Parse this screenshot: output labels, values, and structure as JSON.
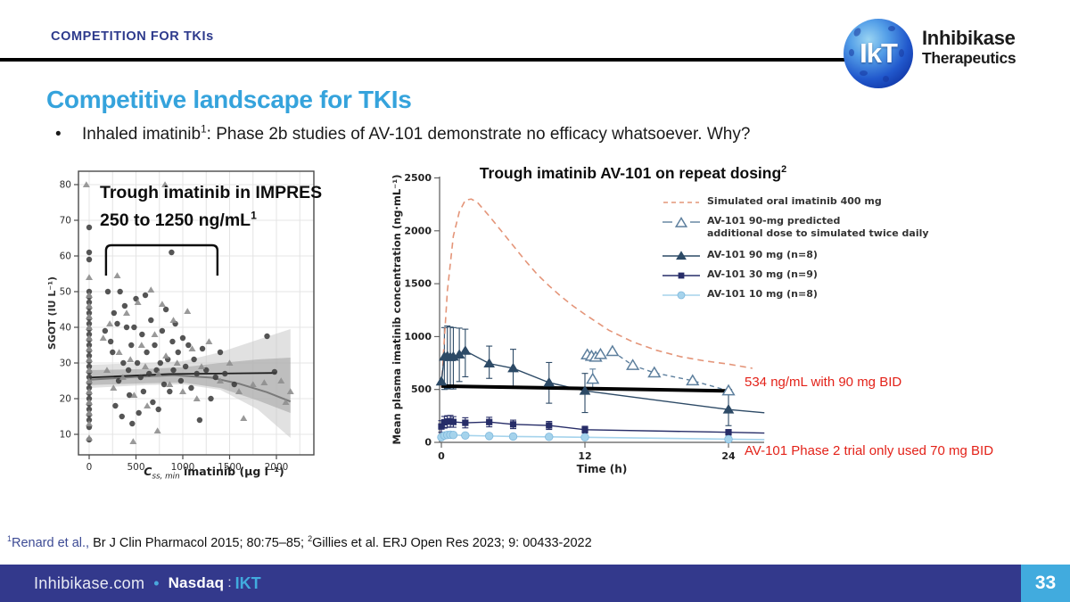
{
  "slide": {
    "kicker": "COMPETITION FOR TKIs",
    "title": "Competitive landscape for TKIs",
    "bullet": {
      "dot": "•",
      "text_before_sup": "Inhaled imatinib",
      "sup": "1",
      "text_after_sup": ":  Phase 2b studies of AV-101 demonstrate no efficacy whatsoever.  Why?"
    },
    "page_number": "33"
  },
  "logo": {
    "monogram": "IkT",
    "name_line1": "Inhibikase",
    "name_line2": "Therapeutics"
  },
  "footnote": {
    "sup1": "1",
    "part1": "Renard et al.,",
    "part2": " Br J Clin Pharmacol  2015; 80:75–85; ",
    "sup2": "2",
    "part3": "Gillies et al. ERJ Open Res 2023; 9: 00433-2022"
  },
  "footer": {
    "website": "Inhibikase.com",
    "dot": "•",
    "exchange": "Nasdaq",
    "colon": ":",
    "ticker": "IKT"
  },
  "colors": {
    "accent_blue": "#35a3dc",
    "kicker_navy": "#2d3a8c",
    "footer_bg": "#33398c",
    "page_badge_blue": "#41abde",
    "annotation_red": "#e32219",
    "footnote_navy": "#3c4a94"
  },
  "chart_data": [
    {
      "type": "scatter",
      "title_line1": "Trough imatinib in IMPRES",
      "title_line2": "250 to 1250 ng/mL",
      "title_sup": "1",
      "xlabel_c": "C",
      "xlabel_sub": "ss, min",
      "xlabel_rest": " imatinib (µg l⁻¹)",
      "ylabel": "SGOT (IU L⁻¹)",
      "xticks": [
        0,
        500,
        1000,
        1500,
        2000
      ],
      "yticks": [
        10,
        20,
        30,
        40,
        50,
        60,
        70,
        80
      ],
      "xlim": [
        -120,
        2400
      ],
      "ylim": [
        4,
        84
      ],
      "grid": true,
      "bracket": {
        "x1": 180,
        "x2": 1370,
        "top": 63,
        "bottom": 54.5
      },
      "fit_flat": [
        [
          0,
          25.9
        ],
        [
          850,
          26.9
        ],
        [
          2000,
          27.2
        ]
      ],
      "fit_curve": [
        [
          0,
          25.3
        ],
        [
          500,
          26.1
        ],
        [
          900,
          26.6
        ],
        [
          1300,
          25.9
        ],
        [
          1600,
          24.2
        ],
        [
          1900,
          21.8
        ],
        [
          2150,
          19.2
        ]
      ],
      "band_outer": {
        "upper": [
          [
            0,
            29.5
          ],
          [
            600,
            30
          ],
          [
            1000,
            30.5
          ],
          [
            1400,
            33
          ],
          [
            1800,
            36.5
          ],
          [
            2150,
            39.5
          ]
        ],
        "lower": [
          [
            2150,
            9
          ],
          [
            1800,
            17
          ],
          [
            1400,
            22.5
          ],
          [
            1000,
            24
          ],
          [
            600,
            23.8
          ],
          [
            0,
            23
          ]
        ]
      },
      "band_inner": {
        "upper": [
          [
            0,
            28
          ],
          [
            600,
            28.3
          ],
          [
            1000,
            28.8
          ],
          [
            1400,
            30
          ],
          [
            1800,
            31
          ],
          [
            2150,
            31.5
          ]
        ],
        "lower": [
          [
            2150,
            16
          ],
          [
            1800,
            19.5
          ],
          [
            1400,
            23
          ],
          [
            1000,
            24.5
          ],
          [
            600,
            24.3
          ],
          [
            0,
            23.8
          ]
        ]
      },
      "circles": [
        [
          0,
          8.5
        ],
        [
          0,
          12
        ],
        [
          0,
          14
        ],
        [
          0,
          15.5
        ],
        [
          0,
          17
        ],
        [
          0,
          18.5
        ],
        [
          0,
          20
        ],
        [
          0,
          21.5
        ],
        [
          0,
          23
        ],
        [
          0,
          24.5
        ],
        [
          0,
          26
        ],
        [
          0,
          27.5
        ],
        [
          0,
          29
        ],
        [
          0,
          30.5
        ],
        [
          0,
          32
        ],
        [
          0,
          33.5
        ],
        [
          0,
          35
        ],
        [
          0,
          36.5
        ],
        [
          0,
          38
        ],
        [
          0,
          39.5
        ],
        [
          0,
          41
        ],
        [
          0,
          42.5
        ],
        [
          0,
          44
        ],
        [
          0,
          45.5
        ],
        [
          0,
          47
        ],
        [
          0,
          48.5
        ],
        [
          0,
          50
        ],
        [
          0,
          59
        ],
        [
          0,
          61
        ],
        [
          0,
          68
        ],
        [
          170,
          39
        ],
        [
          200,
          50
        ],
        [
          230,
          36
        ],
        [
          250,
          33
        ],
        [
          265,
          44
        ],
        [
          280,
          18
        ],
        [
          300,
          41
        ],
        [
          315,
          25
        ],
        [
          330,
          50
        ],
        [
          350,
          15
        ],
        [
          365,
          30
        ],
        [
          380,
          46
        ],
        [
          400,
          40
        ],
        [
          420,
          28
        ],
        [
          430,
          21
        ],
        [
          450,
          35
        ],
        [
          460,
          13
        ],
        [
          480,
          40
        ],
        [
          500,
          48
        ],
        [
          515,
          30
        ],
        [
          530,
          16
        ],
        [
          550,
          26
        ],
        [
          565,
          38
        ],
        [
          580,
          22
        ],
        [
          600,
          49
        ],
        [
          615,
          33
        ],
        [
          640,
          27
        ],
        [
          660,
          42
        ],
        [
          680,
          19
        ],
        [
          700,
          35
        ],
        [
          720,
          28
        ],
        [
          740,
          17
        ],
        [
          760,
          30
        ],
        [
          780,
          39
        ],
        [
          800,
          24
        ],
        [
          820,
          45
        ],
        [
          840,
          31
        ],
        [
          860,
          22
        ],
        [
          880,
          61
        ],
        [
          890,
          36
        ],
        [
          900,
          28
        ],
        [
          920,
          41
        ],
        [
          950,
          33
        ],
        [
          980,
          25
        ],
        [
          1000,
          37
        ],
        [
          1030,
          29
        ],
        [
          1060,
          35
        ],
        [
          1090,
          23
        ],
        [
          1120,
          31
        ],
        [
          1150,
          27
        ],
        [
          1180,
          14
        ],
        [
          1210,
          34
        ],
        [
          1250,
          28
        ],
        [
          1300,
          20
        ],
        [
          1350,
          26
        ],
        [
          1400,
          33
        ],
        [
          1450,
          27
        ],
        [
          1550,
          24
        ],
        [
          1900,
          37.5
        ],
        [
          1980,
          27.5
        ]
      ],
      "triangles": [
        [
          0,
          9
        ],
        [
          0,
          13
        ],
        [
          0,
          16
        ],
        [
          0,
          19
        ],
        [
          0,
          22
        ],
        [
          0,
          25
        ],
        [
          0,
          28
        ],
        [
          0,
          31
        ],
        [
          0,
          34
        ],
        [
          0,
          37
        ],
        [
          0,
          40
        ],
        [
          0,
          43
        ],
        [
          0,
          46
        ],
        [
          0,
          49
        ],
        [
          0,
          54
        ],
        [
          -30,
          80
        ],
        [
          150,
          37
        ],
        [
          190,
          28
        ],
        [
          220,
          41
        ],
        [
          260,
          23
        ],
        [
          300,
          54.5
        ],
        [
          320,
          33
        ],
        [
          360,
          26
        ],
        [
          400,
          44
        ],
        [
          440,
          31
        ],
        [
          470,
          8
        ],
        [
          480,
          21
        ],
        [
          520,
          47
        ],
        [
          560,
          35
        ],
        [
          600,
          29
        ],
        [
          620,
          18
        ],
        [
          660,
          50.5
        ],
        [
          700,
          38
        ],
        [
          730,
          11
        ],
        [
          740,
          27
        ],
        [
          780,
          46.5
        ],
        [
          810,
          80
        ],
        [
          820,
          32
        ],
        [
          860,
          24
        ],
        [
          900,
          42
        ],
        [
          940,
          30
        ],
        [
          1000,
          22
        ],
        [
          1050,
          44.5
        ],
        [
          1100,
          34
        ],
        [
          1150,
          20
        ],
        [
          1200,
          29
        ],
        [
          1280,
          36
        ],
        [
          1400,
          25
        ],
        [
          1500,
          30
        ],
        [
          1600,
          22
        ],
        [
          1650,
          14.5
        ],
        [
          1750,
          24
        ],
        [
          1870,
          24.5
        ],
        [
          2050,
          25
        ],
        [
          2100,
          19
        ],
        [
          2150,
          22
        ]
      ]
    },
    {
      "type": "line",
      "title": "Trough imatinib AV-101 on repeat dosing",
      "title_sup": "2",
      "xlabel": "Time (h)",
      "ylabel": "Mean plasma imatinib concentration (ng·mL⁻¹)",
      "xticks": [
        0,
        12,
        24
      ],
      "yticks": [
        0,
        500,
        1000,
        1500,
        2000,
        2500
      ],
      "xlim": [
        0,
        27
      ],
      "ylim": [
        0,
        2500
      ],
      "reference_line": {
        "x1": 0,
        "y1": 532,
        "x2": 24.3,
        "y2": 486,
        "color": "#000000",
        "meaning": "534 ng/mL trough level"
      },
      "annotations": [
        {
          "text": "534 ng/mL with 90 mg BID",
          "color": "#e32219"
        },
        {
          "text": "AV-101 Phase 2 trial only used 70 mg BID",
          "color": "#e32219"
        }
      ],
      "series": [
        {
          "name": "Simulated oral imatinib 400 mg",
          "legend_label": "Simulated oral imatinib 400 mg",
          "style": "dashed",
          "marker": "none",
          "color": "#e49579",
          "width": 1.6,
          "x": [
            0,
            0.5,
            1,
            1.5,
            2,
            2.5,
            3,
            4,
            5,
            6,
            7,
            8,
            9,
            10,
            11,
            12,
            14,
            16,
            18,
            20,
            22,
            24
          ],
          "y": [
            520,
            1430,
            1950,
            2180,
            2290,
            2300,
            2270,
            2140,
            2000,
            1860,
            1720,
            1590,
            1480,
            1380,
            1290,
            1210,
            1060,
            950,
            870,
            810,
            770,
            740
          ],
          "tail": [
            [
              26,
              700
            ]
          ]
        },
        {
          "name": "AV-101 90-mg predicted additional dose to simulated twice daily",
          "legend_label": "AV-101 90-mg predicted\nadditional dose to simulated twice daily",
          "style": "dashed",
          "marker": "triangle-open",
          "color": "#5d7f9d",
          "width": 1.4,
          "line_from": 14,
          "x": [
            12.2,
            12.55,
            12.9,
            13.3,
            12.65,
            14.3,
            16,
            17.8,
            21,
            24
          ],
          "y": [
            828,
            815,
            806,
            832,
            598,
            860,
            728,
            658,
            583,
            488
          ],
          "err": [
            0,
            0,
            0,
            0,
            95,
            0,
            0,
            0,
            0,
            0
          ]
        },
        {
          "name": "AV-101 90 mg (n=8)",
          "legend_label": "AV-101 90 mg (n=8)",
          "style": "solid",
          "marker": "triangle",
          "color": "#2d4a66",
          "width": 1.4,
          "x": [
            0,
            0.25,
            0.5,
            0.75,
            1,
            1.5,
            2,
            4,
            6,
            9,
            12,
            24
          ],
          "y": [
            575,
            810,
            815,
            805,
            810,
            830,
            865,
            745,
            700,
            565,
            487,
            310
          ],
          "err_lo": [
            0,
            310,
            305,
            300,
            305,
            255,
            245,
            140,
            175,
            195,
            205,
            152
          ],
          "err_hi": [
            0,
            275,
            285,
            285,
            275,
            250,
            205,
            165,
            180,
            190,
            165,
            150
          ],
          "tail": [
            [
              27,
              280
            ]
          ]
        },
        {
          "name": "AV-101 30 mg (n=9)",
          "legend_label": "AV-101 30 mg (n=9)",
          "style": "solid",
          "marker": "square",
          "color": "#272d68",
          "width": 1.4,
          "x": [
            0,
            0.25,
            0.5,
            0.75,
            1,
            2,
            4,
            6,
            9,
            12,
            24
          ],
          "y": [
            150,
            190,
            197,
            200,
            193,
            185,
            192,
            170,
            160,
            120,
            95
          ],
          "err": [
            55,
            55,
            55,
            55,
            50,
            48,
            45,
            40,
            38,
            32,
            25
          ],
          "tail": [
            [
              27,
              88
            ]
          ]
        },
        {
          "name": "AV-101 10 mg (n=8)",
          "legend_label": "AV-101 10 mg (n=8)",
          "style": "solid",
          "marker": "circle",
          "color": "#a5d3ec",
          "width": 1.6,
          "x": [
            0,
            0.25,
            0.5,
            0.75,
            1,
            2,
            4,
            6,
            9,
            12,
            24
          ],
          "y": [
            48,
            65,
            70,
            72,
            70,
            65,
            60,
            55,
            52,
            48,
            30
          ],
          "err": [
            15,
            18,
            18,
            18,
            16,
            14,
            12,
            12,
            10,
            10,
            8
          ],
          "tail": [
            [
              27,
              26
            ]
          ]
        }
      ]
    }
  ]
}
